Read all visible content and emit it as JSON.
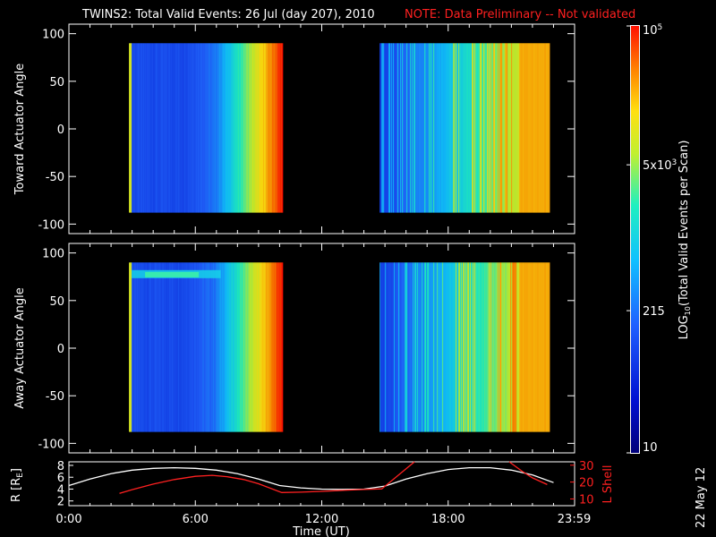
{
  "header": {
    "title": "TWINS2: Total Valid Events: 26 Jul (day 207), 2010",
    "note": "NOTE: Data Preliminary -- Not validated"
  },
  "date_stamp": "22 May 12",
  "colors": {
    "white": "#ffffff",
    "red": "#ff2020",
    "background": "#000000"
  },
  "chart_data": [
    {
      "type": "heatmap",
      "id": "toward",
      "ylabel": "Toward Actuator Angle",
      "ylim": [
        -110,
        110
      ],
      "yticks": [
        100,
        50,
        0,
        -50,
        -100
      ],
      "x_units": "hours UT",
      "xlim": [
        0,
        24
      ],
      "data_blocks": [
        {
          "start": 2.85,
          "end": 10.15,
          "ymin": -88,
          "ymax": 90
        },
        {
          "start": 14.75,
          "end": 22.8,
          "ymin": -88,
          "ymax": 90
        }
      ]
    },
    {
      "type": "heatmap",
      "id": "away",
      "ylabel": "Away Actuator Angle",
      "ylim": [
        -110,
        110
      ],
      "yticks": [
        100,
        50,
        0,
        -50,
        -100
      ],
      "x_units": "hours UT",
      "xlim": [
        0,
        24
      ],
      "data_blocks": [
        {
          "start": 2.85,
          "end": 10.15,
          "ymin": -88,
          "ymax": 90
        },
        {
          "start": 14.75,
          "end": 22.8,
          "ymin": -88,
          "ymax": 90
        }
      ]
    },
    {
      "type": "line",
      "id": "orbit",
      "xlabel": "Time (UT)",
      "xlim": [
        0,
        24
      ],
      "xtick_values": [
        0,
        6,
        12,
        18,
        23.98
      ],
      "xtick_labels": [
        "0:00",
        "6:00",
        "12:00",
        "18:00",
        "23:59"
      ],
      "left_axis": {
        "label": "R [R",
        "label_sub": "E",
        "label_end": "]",
        "ylim": [
          1.2,
          8.6
        ],
        "yticks": [
          2,
          4,
          6,
          8
        ]
      },
      "right_axis": {
        "label": "L Shell",
        "ylim": [
          6,
          32
        ],
        "yticks": [
          10,
          20,
          30
        ]
      },
      "series": [
        {
          "name": "R [RE]",
          "axis": "left",
          "color": "#ffffff",
          "x": [
            0,
            1,
            2,
            3,
            4,
            5,
            6,
            7,
            8,
            9,
            10,
            11,
            12,
            13,
            14,
            15,
            16,
            17,
            18,
            19,
            20,
            21,
            22,
            23
          ],
          "y": [
            4.6,
            5.7,
            6.6,
            7.2,
            7.5,
            7.6,
            7.5,
            7.2,
            6.6,
            5.7,
            4.6,
            4.2,
            4.0,
            3.95,
            4.0,
            4.5,
            5.7,
            6.6,
            7.3,
            7.6,
            7.6,
            7.2,
            6.4,
            5.1
          ]
        },
        {
          "name": "L Shell",
          "axis": "right",
          "color": "#ff2020",
          "x": [
            2.4,
            3,
            4,
            5,
            6,
            6.8,
            7.5,
            8.3,
            9,
            10.1,
            11,
            12,
            13,
            14,
            14.85,
            16.4
          ],
          "y": [
            13.3,
            15.5,
            18.8,
            21.5,
            23.4,
            24,
            23.2,
            21.5,
            19,
            13.8,
            14,
            14.5,
            15.1,
            15.6,
            16,
            32
          ],
          "x2": [
            20.9,
            21.5,
            22,
            22.7
          ],
          "y2": [
            32,
            26.5,
            22.5,
            18.5
          ]
        }
      ]
    },
    {
      "type": "colorbar",
      "id": "colorbar",
      "label_parts": [
        "LOG",
        "10",
        "(Total Valid Events per Scan)"
      ],
      "scale": "log",
      "range": [
        10,
        100000
      ],
      "tick_values": [
        100000,
        5000,
        215,
        10
      ],
      "tick_labels": [
        {
          "base": "10",
          "exp": "5"
        },
        {
          "base": "5x10",
          "exp": "3"
        },
        {
          "base": "215",
          "exp": ""
        },
        {
          "base": "10",
          "exp": ""
        }
      ]
    }
  ]
}
